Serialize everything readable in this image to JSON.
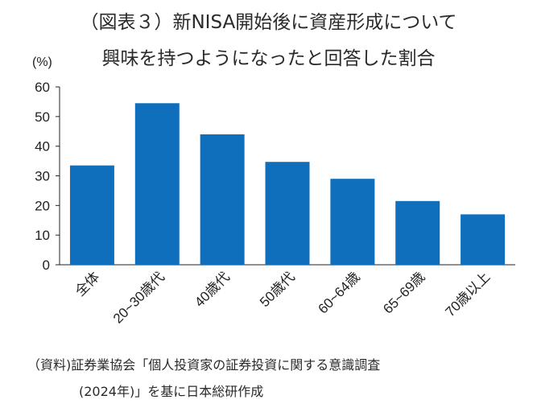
{
  "chart_data": {
    "type": "bar",
    "title_line1": "（図表３）新NISA開始後に資産形成について",
    "title_line2": "興味を持つようになったと回答した割合",
    "ylabel": "(%)",
    "ylim": [
      0,
      60
    ],
    "yticks": [
      0,
      10,
      20,
      30,
      40,
      50,
      60
    ],
    "grid": false,
    "categories": [
      "全体",
      "20~30歳代",
      "40歳代",
      "50歳代",
      "60~64歳",
      "65~69歳",
      "70歳以上"
    ],
    "values": [
      33.5,
      54.5,
      44,
      34.7,
      29,
      21.5,
      17
    ],
    "bar_color": "#0f6fbc"
  },
  "source": {
    "line1": "（資料)証券業協会「個人投資家の証券投資に関する意識調査",
    "line2": "(2024年)」を基に日本総研作成"
  }
}
